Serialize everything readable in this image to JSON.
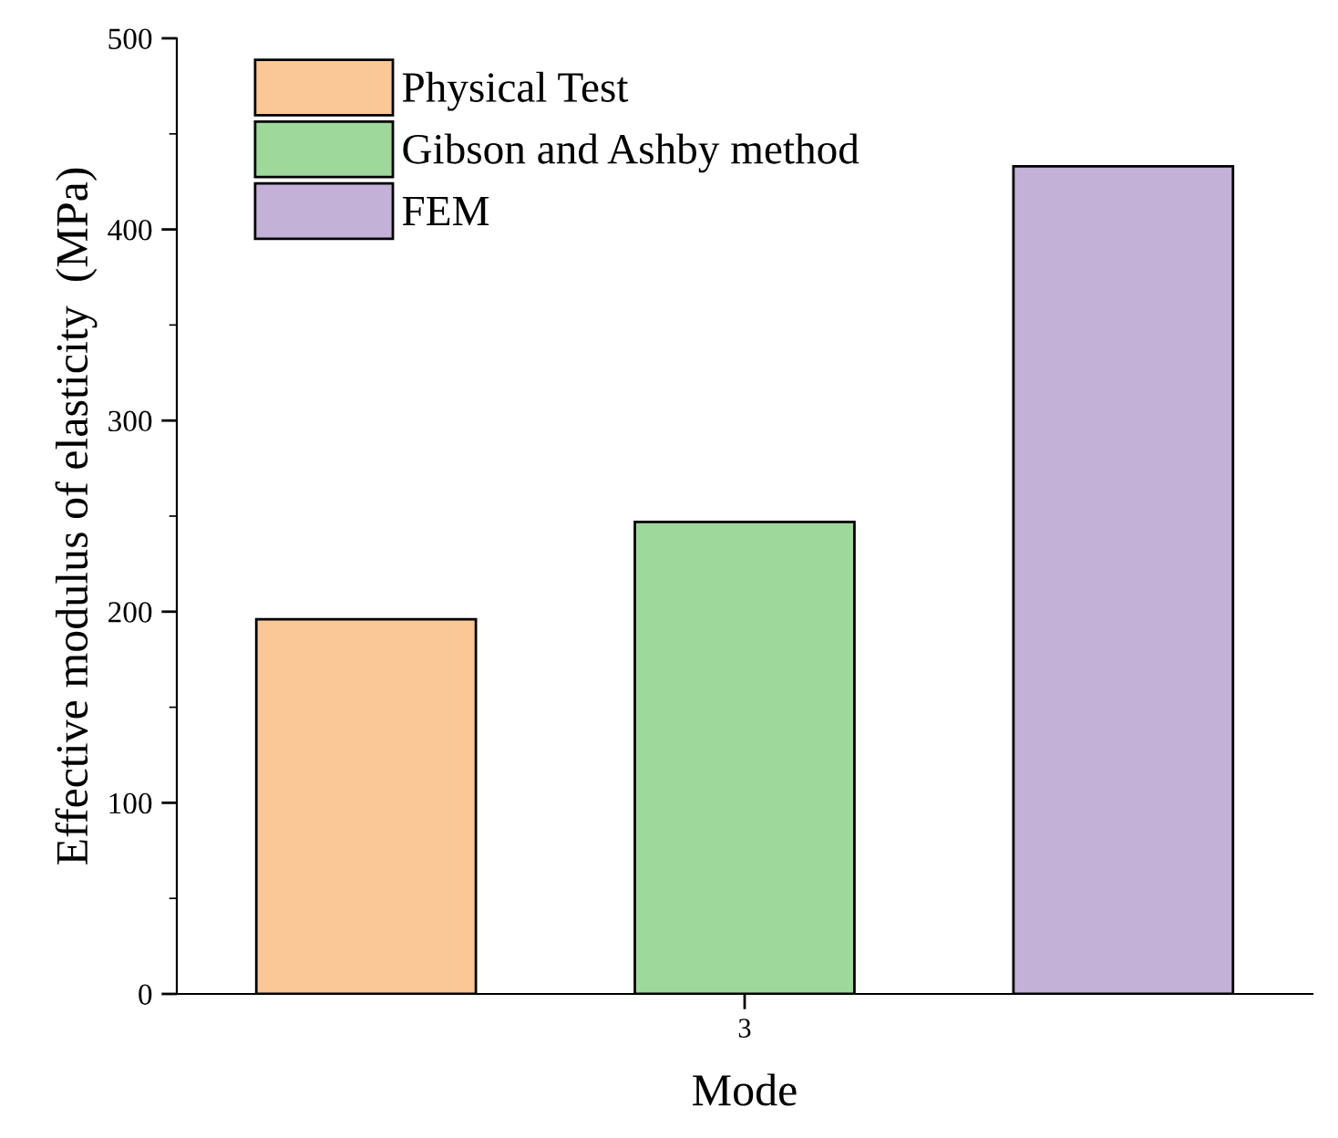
{
  "chart_data": {
    "type": "bar",
    "xlabel": "Mode",
    "ylabel": "Effective modulus of elasticity  (MPa)",
    "categories": [
      "3"
    ],
    "series": [
      {
        "name": "Physical Test",
        "color": "#f9c896",
        "values": [
          196
        ]
      },
      {
        "name": "Gibson and Ashby method",
        "color": "#9fd89b",
        "values": [
          247
        ]
      },
      {
        "name": "FEM",
        "color": "#c3b1d7",
        "values": [
          433
        ]
      }
    ],
    "ylim": [
      0,
      500
    ],
    "yticks": [
      0,
      100,
      200,
      300,
      400,
      500
    ],
    "grid": false,
    "legend": "top left"
  }
}
